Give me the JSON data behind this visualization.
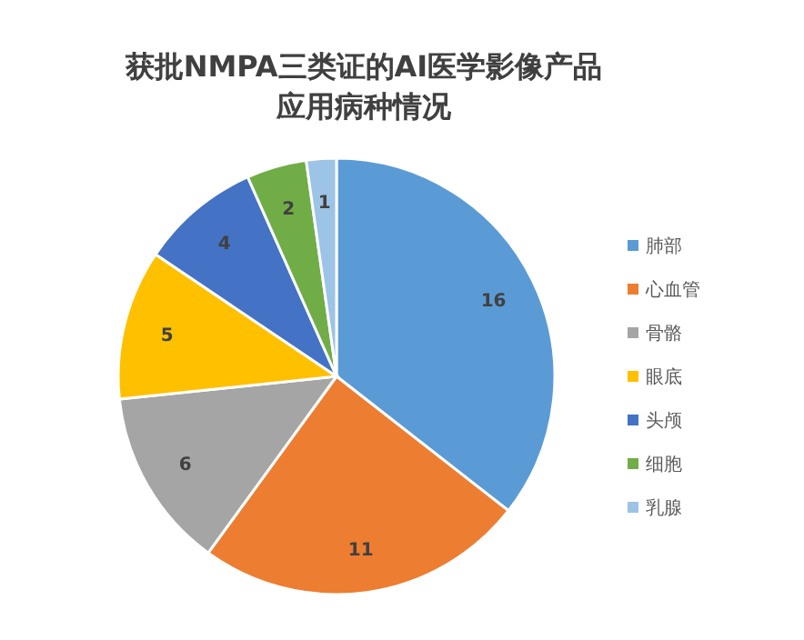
{
  "chart_data": {
    "type": "pie",
    "title": "获批NMPA三类证的AI医学影像产品应用病种情况",
    "categories": [
      "肺部",
      "心血管",
      "骨骼",
      "眼底",
      "头颅",
      "细胞",
      "乳腺"
    ],
    "values": [
      16,
      11,
      6,
      5,
      4,
      2,
      1
    ],
    "colors": [
      "#5b9bd5",
      "#ed7d31",
      "#a5a5a5",
      "#ffc000",
      "#4472c4",
      "#70ad47",
      "#9dc3e6"
    ],
    "data_labels": true,
    "legend": "right"
  }
}
